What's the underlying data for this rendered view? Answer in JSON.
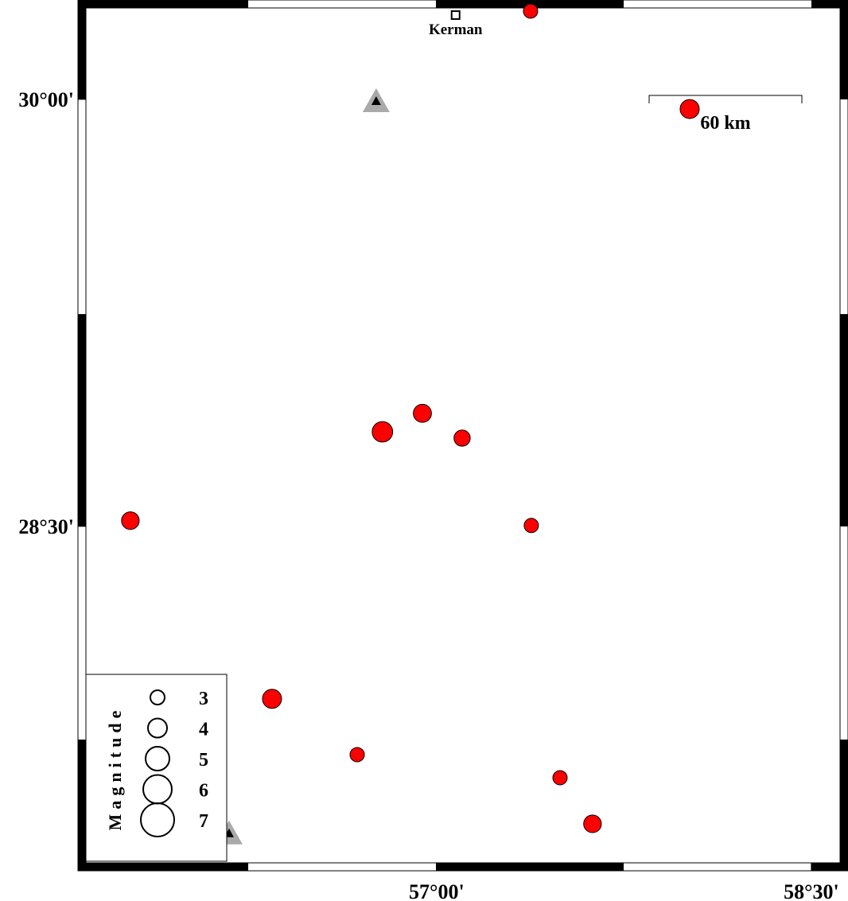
{
  "map": {
    "lonlim": [
      55.596,
      58.615
    ],
    "latlim": [
      27.318,
      30.321
    ],
    "lonticks": [
      {
        "value": 57,
        "label": "57°00'"
      },
      {
        "value": 58.5,
        "label": "58°30'"
      }
    ],
    "latticks": [
      {
        "value": 30,
        "label": "30°00'"
      },
      {
        "value": 28.5,
        "label": "28°30'"
      }
    ],
    "city": {
      "name": "Kerman",
      "lon": 57.076,
      "lat": 30.296
    },
    "stations": [
      {
        "lon": 56.758,
        "lat": 29.994
      },
      {
        "lon": 56.169,
        "lat": 27.422
      }
    ],
    "events": [
      {
        "lon": 57.376,
        "lat": 30.31,
        "mag": 3
      },
      {
        "lon": 58.013,
        "lat": 29.966,
        "mag": 4
      },
      {
        "lon": 56.783,
        "lat": 28.832,
        "mag": 4.3
      },
      {
        "lon": 56.943,
        "lat": 28.897,
        "mag": 3.8
      },
      {
        "lon": 57.102,
        "lat": 28.81,
        "mag": 3.4
      },
      {
        "lon": 55.774,
        "lat": 28.52,
        "mag": 3.7
      },
      {
        "lon": 57.379,
        "lat": 28.503,
        "mag": 3
      },
      {
        "lon": 56.341,
        "lat": 27.894,
        "mag": 4
      },
      {
        "lon": 56.682,
        "lat": 27.698,
        "mag": 3
      },
      {
        "lon": 57.494,
        "lat": 27.617,
        "mag": 3
      },
      {
        "lon": 57.624,
        "lat": 27.455,
        "mag": 3.7
      }
    ],
    "event_color": "#ff0000",
    "scale_label": "60 km",
    "legend": {
      "title": "Magnitude",
      "values": [
        3,
        4,
        5,
        6,
        7
      ]
    }
  }
}
